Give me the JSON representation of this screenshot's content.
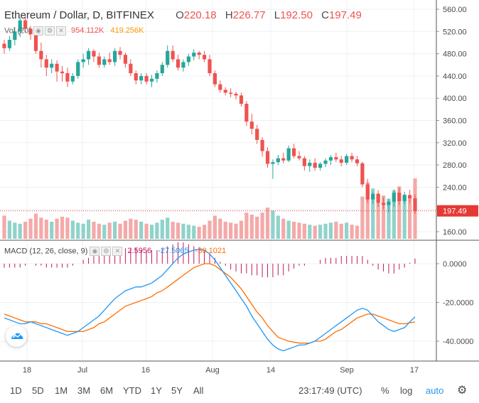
{
  "header": {
    "symbol": "Ethereum / Dollar, D, BITFINEX",
    "open_label": "O",
    "open": "220.18",
    "high_label": "H",
    "high": "226.77",
    "low_label": "L",
    "low": "192.50",
    "close_label": "C",
    "close": "197.49"
  },
  "volume_legend": {
    "label": "Vol (20)",
    "value1": "954.112K",
    "value2": "419.256K"
  },
  "macd_legend": {
    "label": "MACD (12, 26, close, 9)",
    "histogram": "2.5956",
    "macd": "-27.5065",
    "signal": "-30.1021"
  },
  "price_tag": "197.49",
  "toolbar": {
    "ranges": [
      "1D",
      "5D",
      "1M",
      "3M",
      "6M",
      "YTD",
      "1Y",
      "5Y",
      "All"
    ],
    "time": "23:17:49 (UTC)",
    "percent": "%",
    "log": "log",
    "auto": "auto"
  },
  "colors": {
    "up": "#26a69a",
    "down": "#ef5350",
    "macd": "#2196f3",
    "signal": "#ff6d00",
    "histogram": "#c2185b",
    "vol_up": "#8fd3cb",
    "vol_down": "#f4a9a8",
    "price_line": "#e53935"
  },
  "chart_data": [
    {
      "type": "candlestick",
      "title": "Ethereum / Dollar, D, BITFINEX",
      "x_ticks": [
        "18",
        "Jul",
        "16",
        "Aug",
        "14",
        "Sep",
        "17"
      ],
      "y_ticks": [
        "160.00",
        "200.00",
        "240.00",
        "280.00",
        "320.00",
        "360.00",
        "400.00",
        "440.00",
        "480.00",
        "520.00",
        "560.00"
      ],
      "ylim": [
        150,
        565
      ],
      "last_price": 197.49,
      "ohlc": [
        [
          498,
          505,
          480,
          490
        ],
        [
          490,
          512,
          485,
          505
        ],
        [
          505,
          528,
          495,
          520
        ],
        [
          520,
          545,
          510,
          540
        ],
        [
          540,
          548,
          518,
          525
        ],
        [
          525,
          530,
          505,
          515
        ],
        [
          515,
          520,
          480,
          485
        ],
        [
          485,
          500,
          455,
          470
        ],
        [
          470,
          478,
          440,
          455
        ],
        [
          455,
          470,
          445,
          462
        ],
        [
          462,
          468,
          430,
          448
        ],
        [
          448,
          458,
          430,
          445
        ],
        [
          445,
          455,
          420,
          430
        ],
        [
          430,
          445,
          425,
          440
        ],
        [
          440,
          470,
          435,
          465
        ],
        [
          465,
          480,
          455,
          470
        ],
        [
          470,
          490,
          460,
          485
        ],
        [
          485,
          488,
          465,
          475
        ],
        [
          475,
          482,
          455,
          460
        ],
        [
          460,
          475,
          455,
          470
        ],
        [
          470,
          482,
          460,
          465
        ],
        [
          465,
          490,
          458,
          485
        ],
        [
          485,
          492,
          470,
          478
        ],
        [
          478,
          482,
          455,
          462
        ],
        [
          462,
          470,
          440,
          445
        ],
        [
          445,
          450,
          425,
          432
        ],
        [
          432,
          445,
          425,
          440
        ],
        [
          440,
          445,
          425,
          430
        ],
        [
          430,
          442,
          420,
          435
        ],
        [
          435,
          450,
          428,
          445
        ],
        [
          445,
          465,
          440,
          460
        ],
        [
          460,
          495,
          455,
          485
        ],
        [
          485,
          495,
          465,
          470
        ],
        [
          470,
          478,
          450,
          455
        ],
        [
          455,
          470,
          448,
          465
        ],
        [
          465,
          480,
          458,
          475
        ],
        [
          475,
          488,
          468,
          482
        ],
        [
          482,
          485,
          470,
          478
        ],
        [
          478,
          485,
          465,
          470
        ],
        [
          470,
          478,
          440,
          445
        ],
        [
          445,
          450,
          420,
          425
        ],
        [
          425,
          432,
          410,
          415
        ],
        [
          415,
          420,
          405,
          410
        ],
        [
          410,
          418,
          402,
          408
        ],
        [
          408,
          412,
          398,
          405
        ],
        [
          405,
          410,
          385,
          390
        ],
        [
          390,
          395,
          350,
          358
        ],
        [
          358,
          372,
          335,
          345
        ],
        [
          345,
          352,
          318,
          325
        ],
        [
          325,
          330,
          295,
          305
        ],
        [
          305,
          312,
          275,
          282
        ],
        [
          282,
          290,
          255,
          285
        ],
        [
          285,
          298,
          280,
          292
        ],
        [
          292,
          302,
          283,
          288
        ],
        [
          288,
          315,
          285,
          310
        ],
        [
          310,
          318,
          292,
          296
        ],
        [
          296,
          305,
          288,
          292
        ],
        [
          292,
          296,
          270,
          278
        ],
        [
          278,
          290,
          268,
          284
        ],
        [
          284,
          292,
          270,
          275
        ],
        [
          275,
          285,
          270,
          282
        ],
        [
          282,
          292,
          276,
          288
        ],
        [
          288,
          298,
          280,
          294
        ],
        [
          294,
          302,
          285,
          290
        ],
        [
          290,
          296,
          278,
          284
        ],
        [
          284,
          300,
          280,
          296
        ],
        [
          296,
          302,
          285,
          290
        ],
        [
          290,
          296,
          278,
          283
        ],
        [
          283,
          286,
          240,
          245
        ],
        [
          245,
          255,
          212,
          218
        ],
        [
          218,
          232,
          210,
          228
        ],
        [
          228,
          235,
          205,
          212
        ],
        [
          212,
          222,
          200,
          208
        ],
        [
          208,
          218,
          195,
          214
        ],
        [
          214,
          236,
          205,
          230
        ],
        [
          230,
          240,
          208,
          215
        ],
        [
          215,
          232,
          210,
          226
        ],
        [
          226,
          235,
          212,
          220
        ],
        [
          220,
          227,
          192,
          197
        ]
      ],
      "volume": [
        230,
        180,
        160,
        150,
        170,
        200,
        250,
        210,
        190,
        170,
        200,
        220,
        210,
        180,
        160,
        150,
        190,
        170,
        150,
        140,
        160,
        170,
        150,
        180,
        200,
        190,
        170,
        150,
        140,
        160,
        190,
        210,
        170,
        160,
        150,
        140,
        130,
        120,
        140,
        180,
        230,
        200,
        170,
        160,
        150,
        180,
        260,
        240,
        220,
        260,
        310,
        280,
        230,
        200,
        180,
        170,
        160,
        150,
        140,
        130,
        140,
        150,
        160,
        170,
        150,
        160,
        140,
        130,
        420,
        560,
        500,
        450,
        430,
        400,
        480,
        520,
        440,
        420,
        954
      ],
      "macd": [
        -28,
        -29,
        -30,
        -31,
        -31,
        -30,
        -31,
        -32,
        -33,
        -34,
        -35,
        -36,
        -37,
        -36,
        -35,
        -33,
        -31,
        -29,
        -27,
        -24,
        -21,
        -18,
        -16,
        -14,
        -13,
        -12,
        -12,
        -11,
        -10,
        -8,
        -6,
        -3,
        0,
        3,
        5,
        6,
        7,
        7.5,
        7,
        5,
        2,
        -2,
        -6,
        -10,
        -14,
        -18,
        -22,
        -27,
        -31,
        -35,
        -39,
        -42,
        -44,
        -45,
        -44,
        -43,
        -42,
        -42,
        -41,
        -40,
        -38,
        -36,
        -34,
        -32,
        -30,
        -28,
        -26,
        -24,
        -23,
        -24,
        -27,
        -30,
        -32,
        -34,
        -35,
        -34,
        -33,
        -30,
        -27.5
      ],
      "signal": [
        -26,
        -27,
        -28,
        -29,
        -30,
        -30,
        -30,
        -31,
        -31,
        -32,
        -33,
        -34,
        -35,
        -35,
        -35,
        -35,
        -34,
        -33,
        -31,
        -30,
        -28,
        -26,
        -24,
        -22,
        -21,
        -20,
        -19,
        -18,
        -17,
        -15,
        -14,
        -12,
        -10,
        -8,
        -6,
        -4,
        -2,
        -1,
        0,
        0,
        -1,
        -3,
        -5,
        -7,
        -10,
        -13,
        -17,
        -21,
        -25,
        -28,
        -32,
        -35,
        -38,
        -39,
        -40,
        -40.5,
        -41,
        -41,
        -41,
        -40,
        -40,
        -39,
        -37,
        -35,
        -34,
        -32,
        -30,
        -28,
        -27,
        -26,
        -26,
        -27,
        -28,
        -29,
        -30,
        -31,
        -31,
        -30.5,
        -30.1
      ],
      "macd_y_ticks": [
        "0.0000",
        "-20.0000",
        "-40.0000"
      ],
      "macd_ylim": [
        -50,
        9
      ]
    }
  ]
}
